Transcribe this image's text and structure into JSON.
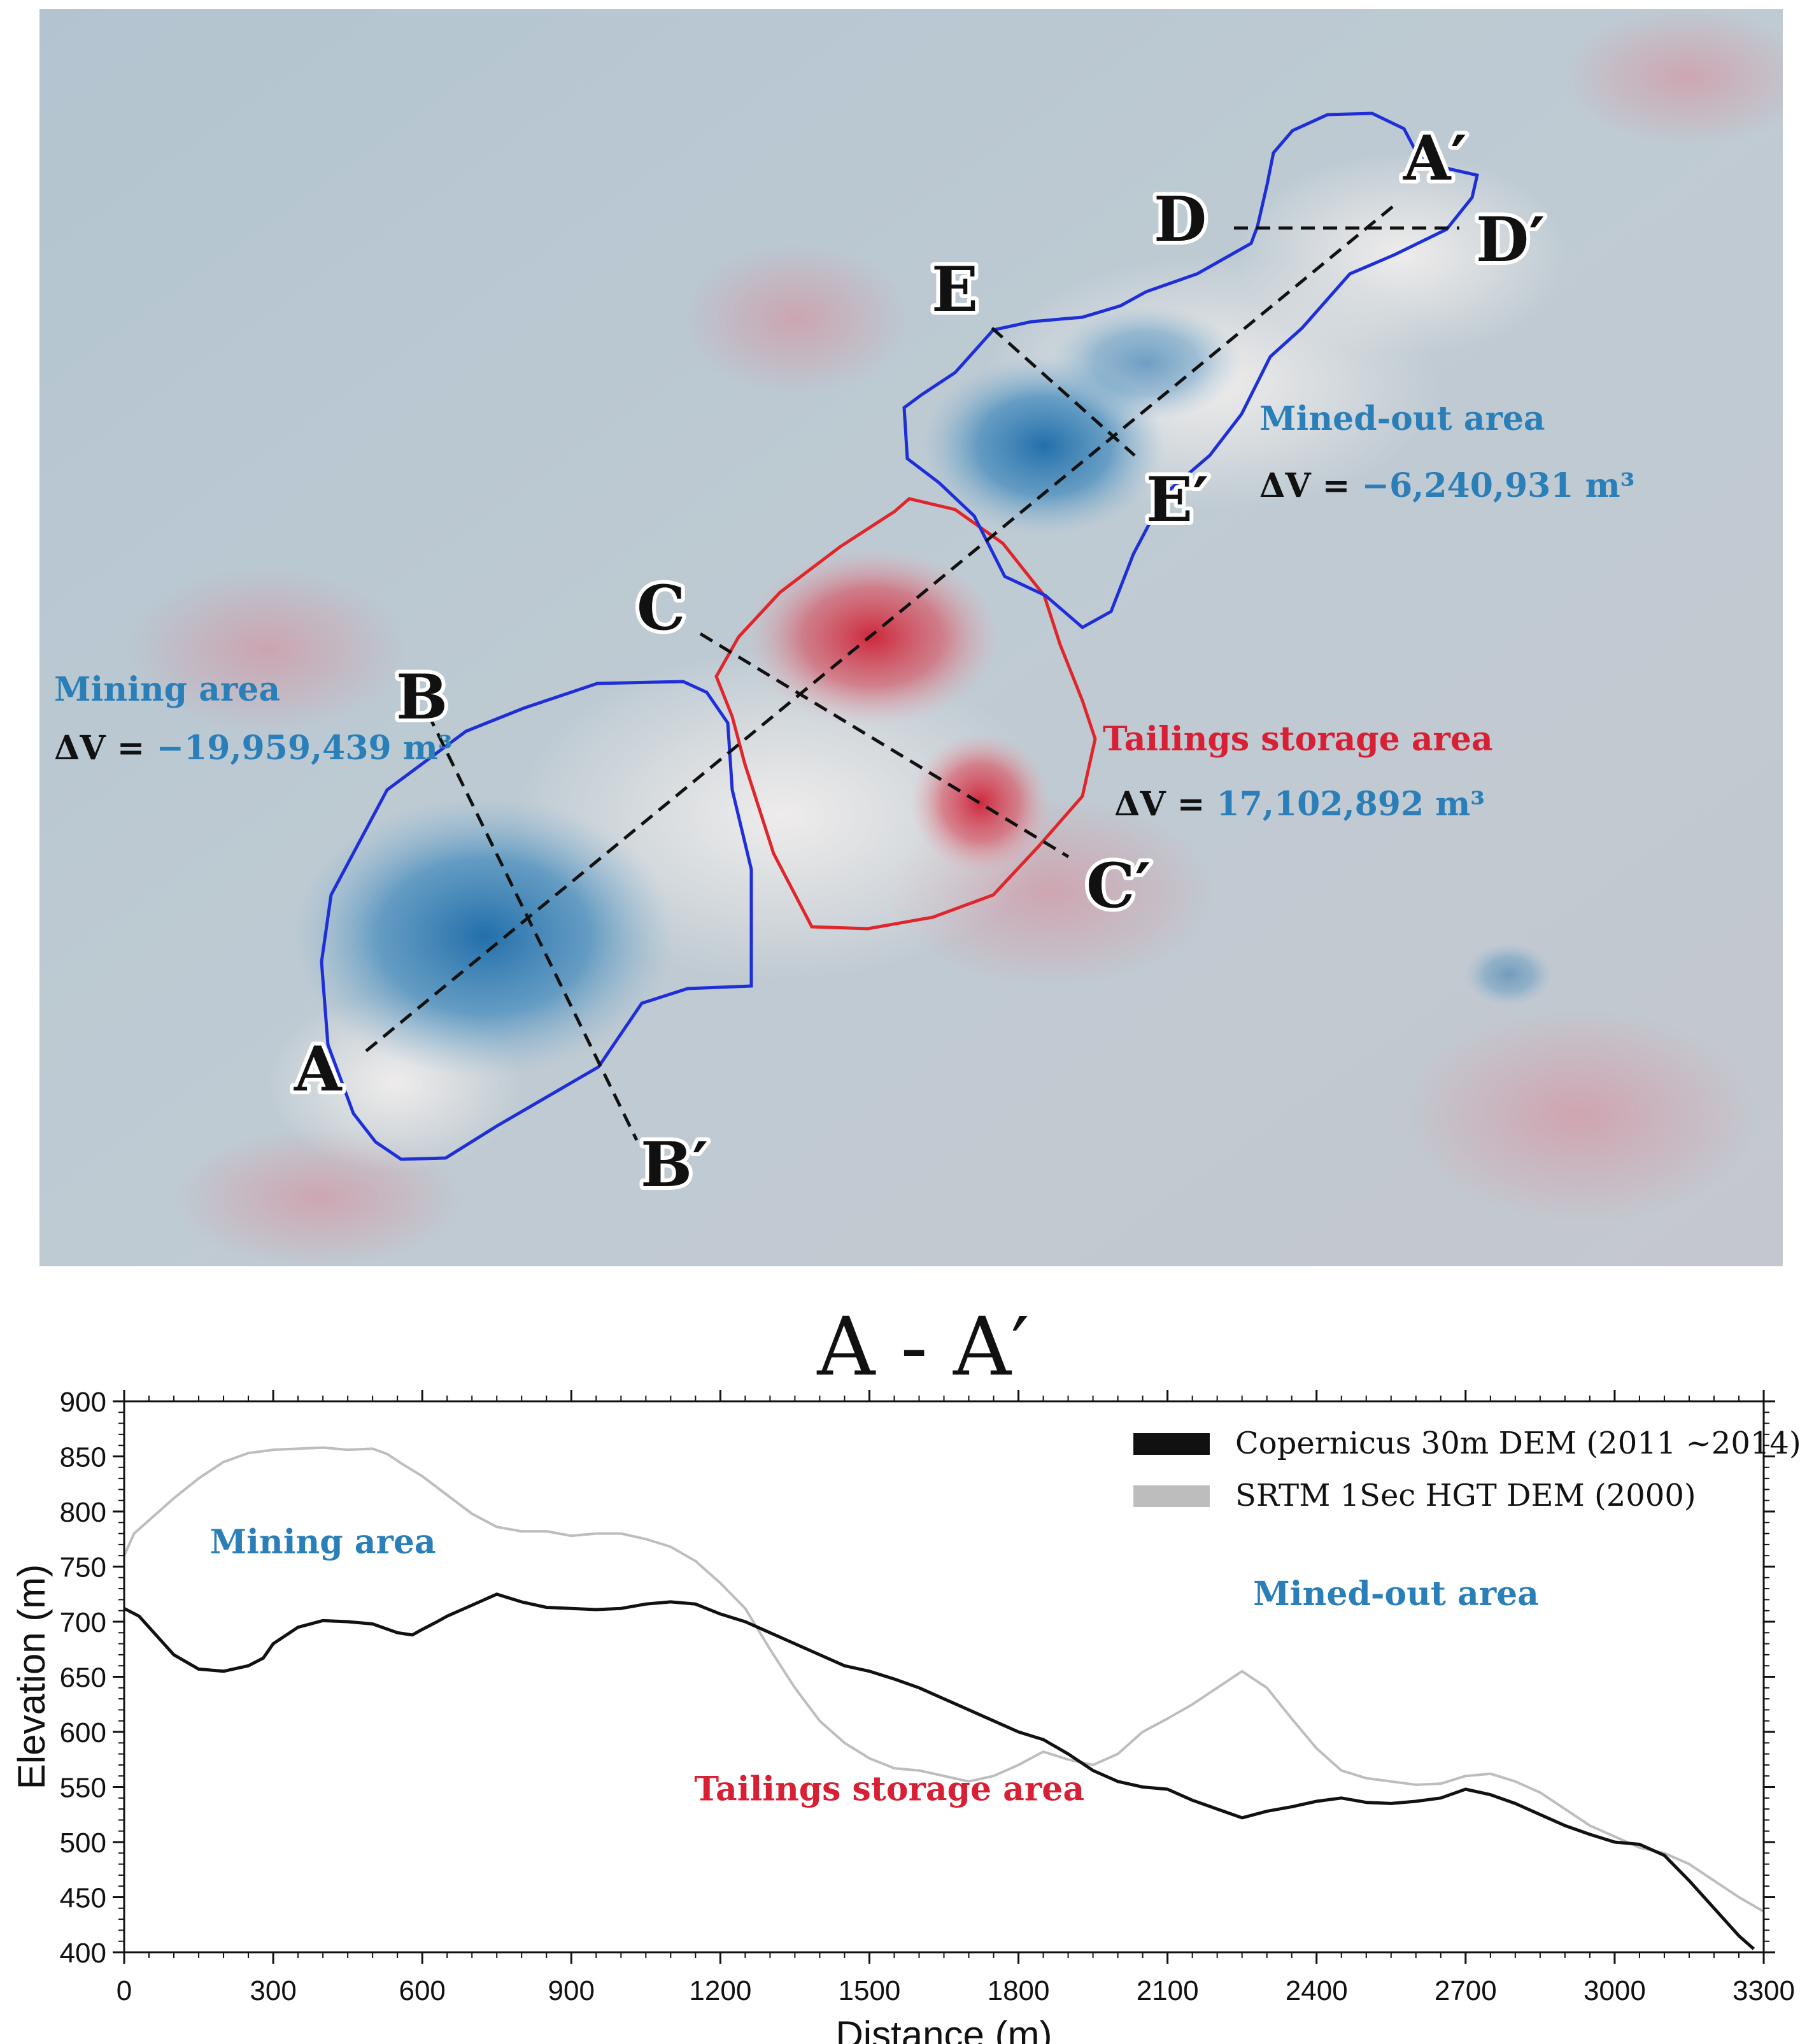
{
  "map": {
    "polygons": {
      "mining": {
        "label": "Mining area",
        "dv_prefix": "ΔV = ",
        "dv_value": "−19,959,439 m³",
        "outline_color": "#1f2fd8"
      },
      "tailings": {
        "label": "Tailings storage area",
        "dv_prefix": "ΔV = ",
        "dv_value": "17,102,892 m³",
        "outline_color": "#e0262b"
      },
      "minedout": {
        "label": "Mined-out area",
        "dv_prefix": "ΔV = ",
        "dv_value": "−6,240,931 m³",
        "outline_color": "#1f2fd8"
      }
    },
    "profile_labels": {
      "A": "A",
      "A_prime": "A′",
      "B": "B",
      "B_prime": "B′",
      "C": "C",
      "C_prime": "C′",
      "D": "D",
      "D_prime": "D′",
      "E": "E",
      "E_prime": "E′"
    },
    "colors": {
      "blue_label": "#2a7fb8",
      "red_label": "#d81f34",
      "subsidence": "#1a6aa8",
      "accumulation": "#cf1f34"
    }
  },
  "chart_data": {
    "type": "line",
    "title": "A - A′",
    "xlabel": "Distance (m)",
    "ylabel": "Elevation (m)",
    "xlim": [
      0,
      3300
    ],
    "ylim": [
      400,
      900
    ],
    "xticks": [
      0,
      300,
      600,
      900,
      1200,
      1500,
      1800,
      2100,
      2400,
      2700,
      3000,
      3300
    ],
    "yticks": [
      400,
      450,
      500,
      550,
      600,
      650,
      700,
      750,
      800,
      850,
      900
    ],
    "legend_position": "top-right",
    "annotations": [
      {
        "text": "Mining area",
        "x": 400,
        "y": 762,
        "color": "#2a7fb8"
      },
      {
        "text": "Mined-out area",
        "x": 2560,
        "y": 715,
        "color": "#2a7fb8"
      },
      {
        "text": "Tailings storage area",
        "x": 1540,
        "y": 538,
        "color": "#d81f34"
      }
    ],
    "series": [
      {
        "name": "Copernicus 30m DEM (2011 ~2014)",
        "color": "#111111",
        "x": [
          0,
          30,
          60,
          100,
          150,
          200,
          250,
          280,
          300,
          350,
          400,
          450,
          500,
          550,
          580,
          600,
          630,
          650,
          700,
          750,
          800,
          850,
          900,
          950,
          1000,
          1050,
          1100,
          1150,
          1200,
          1250,
          1300,
          1350,
          1400,
          1450,
          1500,
          1550,
          1600,
          1650,
          1700,
          1750,
          1800,
          1850,
          1900,
          1950,
          2000,
          2050,
          2100,
          2150,
          2200,
          2250,
          2300,
          2350,
          2400,
          2450,
          2500,
          2550,
          2600,
          2650,
          2700,
          2750,
          2800,
          2850,
          2900,
          2950,
          3000,
          3050,
          3100,
          3150,
          3200,
          3250,
          3280
        ],
        "y": [
          712,
          705,
          690,
          670,
          657,
          655,
          660,
          667,
          680,
          695,
          701,
          700,
          698,
          690,
          688,
          693,
          700,
          705,
          715,
          725,
          718,
          713,
          712,
          711,
          712,
          716,
          718,
          716,
          707,
          700,
          690,
          680,
          670,
          660,
          655,
          648,
          640,
          630,
          620,
          610,
          600,
          593,
          580,
          565,
          555,
          550,
          548,
          538,
          530,
          522,
          528,
          532,
          537,
          540,
          536,
          535,
          537,
          540,
          548,
          543,
          535,
          525,
          515,
          507,
          500,
          498,
          488,
          465,
          440,
          415,
          403
        ]
      },
      {
        "name": "SRTM 1Sec HGT DEM (2000)",
        "color": "#bdbdbd",
        "x": [
          0,
          20,
          50,
          100,
          150,
          200,
          250,
          300,
          350,
          400,
          450,
          500,
          530,
          560,
          600,
          650,
          700,
          750,
          800,
          850,
          900,
          950,
          1000,
          1050,
          1100,
          1150,
          1200,
          1250,
          1300,
          1350,
          1400,
          1450,
          1500,
          1550,
          1600,
          1650,
          1700,
          1750,
          1800,
          1850,
          1900,
          1950,
          2000,
          2050,
          2100,
          2150,
          2200,
          2250,
          2300,
          2350,
          2400,
          2450,
          2500,
          2550,
          2600,
          2650,
          2700,
          2750,
          2800,
          2850,
          2900,
          2950,
          3000,
          3050,
          3100,
          3150,
          3200,
          3250,
          3300
        ],
        "y": [
          760,
          780,
          792,
          812,
          830,
          845,
          853,
          856,
          857,
          858,
          856,
          857,
          852,
          843,
          832,
          815,
          798,
          786,
          782,
          782,
          778,
          780,
          780,
          775,
          768,
          755,
          735,
          712,
          675,
          640,
          610,
          590,
          576,
          567,
          565,
          560,
          555,
          560,
          570,
          582,
          575,
          570,
          580,
          600,
          612,
          625,
          640,
          655,
          640,
          612,
          585,
          565,
          558,
          555,
          552,
          553,
          560,
          562,
          555,
          545,
          530,
          515,
          505,
          495,
          490,
          480,
          465,
          450,
          437
        ]
      }
    ]
  }
}
